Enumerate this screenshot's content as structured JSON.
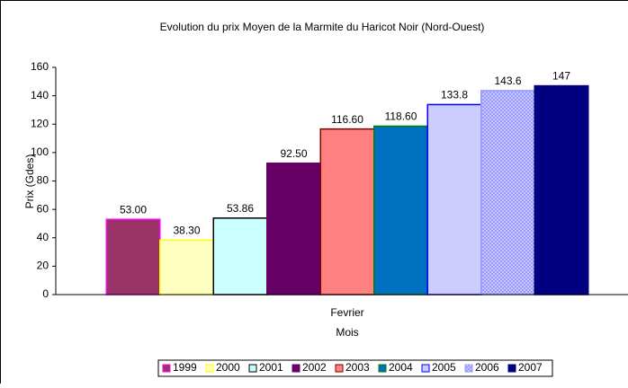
{
  "chart_data": {
    "type": "bar",
    "title": "Evolution du prix Moyen de la Marmite du Haricot Noir (Nord-Ouest)",
    "x_label": "Mois",
    "y_label": "Prix (Gdes)",
    "categories": [
      "Fevrier"
    ],
    "series": [
      {
        "name": "1999",
        "color": "#993366",
        "edgecolor": "#ff00ff",
        "values": [
          53
        ],
        "value_labels": [
          "53.00"
        ]
      },
      {
        "name": "2000",
        "color": "#ffffc0",
        "edgecolor": "#ffff00",
        "values": [
          38.3
        ],
        "value_labels": [
          "38.30"
        ]
      },
      {
        "name": "2001",
        "color": "#ccffff",
        "edgecolor": "#000000",
        "values": [
          53.86
        ]
      },
      {
        "name": "2002",
        "color": "#660066",
        "edgecolor": "#660066",
        "values": [
          92.5
        ],
        "value_labels": [
          "92.50"
        ]
      },
      {
        "name": "2003",
        "color": "#ff8080",
        "edgecolor": "#800000",
        "values": [
          116.6
        ],
        "value_labels": [
          "116.60"
        ]
      },
      {
        "name": "2004",
        "color": "#0070c0",
        "edgecolor": "#008000",
        "values": [
          118.6
        ],
        "value_labels": [
          "118.60"
        ]
      },
      {
        "name": "2005",
        "color": "#ccccff",
        "edgecolor": "#0000ff",
        "values": [
          133.8
        ]
      },
      {
        "name": "2006",
        "color": "#9999ff",
        "edgecolor": "#9999ff",
        "pattern": "dots",
        "values": [
          143.6
        ]
      },
      {
        "name": "2007",
        "color": "#000080",
        "edgecolor": "#000080",
        "values": [
          147
        ]
      }
    ],
    "ylim": [
      0,
      160
    ],
    "yticks": [
      0,
      20,
      40,
      60,
      80,
      100,
      120,
      140,
      160
    ],
    "legend": "bottom"
  }
}
